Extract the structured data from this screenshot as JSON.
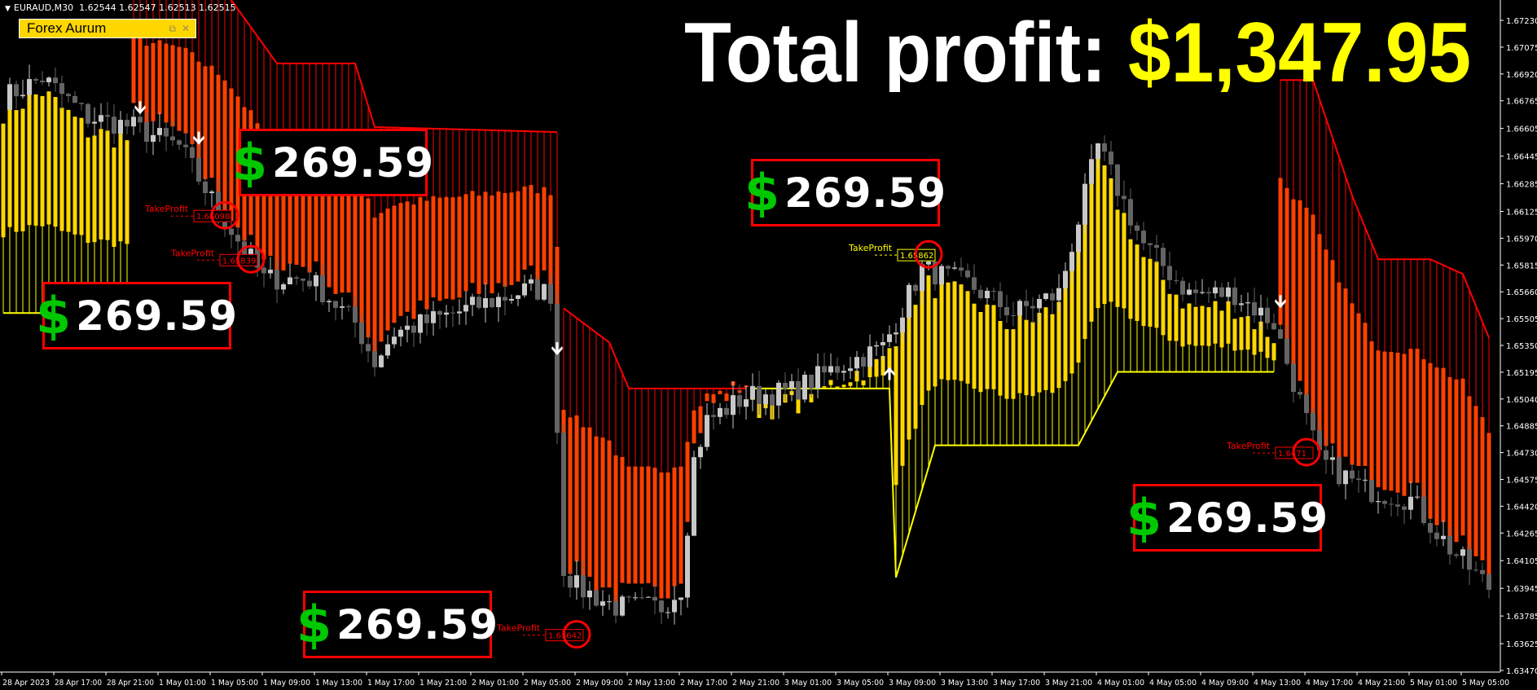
{
  "header": {
    "symbol": "EURAUD,M30",
    "quote": "1.62544 1.62547 1.62513 1.62515"
  },
  "expert": {
    "name": "Forex Aurum",
    "restore_icon": "restore-icon",
    "close_icon": "close-icon"
  },
  "title": {
    "label": "Total profit:",
    "amount": "$1,347.95",
    "label_color": "#ffffff",
    "amount_color": "#ffff00"
  },
  "profit_boxes": [
    {
      "currency": "$",
      "amount": "269.59"
    },
    {
      "currency": "$",
      "amount": "269.59"
    },
    {
      "currency": "$",
      "amount": "269.59"
    },
    {
      "currency": "$",
      "amount": "269.59"
    },
    {
      "currency": "$",
      "amount": "269.59"
    }
  ],
  "chart_data": {
    "type": "candlestick",
    "timeframe": "M30",
    "ylim": [
      1.6347,
      1.6723
    ],
    "y_ticks": [
      "1.67230",
      "1.67075",
      "1.66920",
      "1.66765",
      "1.66605",
      "1.66445",
      "1.66285",
      "1.66125",
      "1.65970",
      "1.65815",
      "1.65660",
      "1.65505",
      "1.65350",
      "1.65195",
      "1.65040",
      "1.64885",
      "1.64730",
      "1.64575",
      "1.64420",
      "1.64265",
      "1.64105",
      "1.63945",
      "1.63785",
      "1.63625",
      "1.63470"
    ],
    "x_ticks": [
      "28 Apr 2023",
      "28 Apr 17:00",
      "28 Apr 21:00",
      "1 May 01:00",
      "1 May 05:00",
      "1 May 09:00",
      "1 May 13:00",
      "1 May 17:00",
      "1 May 21:00",
      "2 May 01:00",
      "2 May 05:00",
      "2 May 09:00",
      "2 May 13:00",
      "2 May 17:00",
      "2 May 21:00",
      "3 May 01:00",
      "3 May 05:00",
      "3 May 09:00",
      "3 May 13:00",
      "3 May 17:00",
      "3 May 21:00",
      "4 May 01:00",
      "4 May 05:00",
      "4 May 09:00",
      "4 May 13:00",
      "4 May 17:00",
      "4 May 21:00",
      "5 May 01:00",
      "5 May 05:00"
    ],
    "bars_per_tick": 8,
    "close_path": [
      [
        0,
        1.66783
      ],
      [
        6,
        1.66896
      ],
      [
        13,
        1.66669
      ],
      [
        20,
        1.66613
      ],
      [
        27,
        1.665
      ],
      [
        33,
        1.66131
      ],
      [
        40,
        1.65735
      ],
      [
        47,
        1.65735
      ],
      [
        54,
        1.6548
      ],
      [
        57,
        1.65254
      ],
      [
        60,
        1.65424
      ],
      [
        67,
        1.65509
      ],
      [
        74,
        1.65594
      ],
      [
        81,
        1.65679
      ],
      [
        84,
        1.6565
      ],
      [
        86,
        1.64065
      ],
      [
        88,
        1.63951
      ],
      [
        94,
        1.63838
      ],
      [
        101,
        1.63838
      ],
      [
        104,
        1.63951
      ],
      [
        106,
        1.64687
      ],
      [
        108,
        1.64914
      ],
      [
        114,
        1.65056
      ],
      [
        121,
        1.65084
      ],
      [
        128,
        1.65225
      ],
      [
        135,
        1.65339
      ],
      [
        141,
        1.65792
      ],
      [
        148,
        1.65707
      ],
      [
        155,
        1.65537
      ],
      [
        162,
        1.6565
      ],
      [
        168,
        1.665
      ],
      [
        175,
        1.65933
      ],
      [
        182,
        1.6565
      ],
      [
        189,
        1.6565
      ],
      [
        195,
        1.6548
      ],
      [
        202,
        1.64687
      ],
      [
        209,
        1.64517
      ],
      [
        216,
        1.6446
      ],
      [
        222,
        1.64177
      ],
      [
        228,
        1.63951
      ]
    ],
    "bull_color": "#c8c8c8",
    "bear_color": "#646464",
    "trend_segments": [
      {
        "dir": "buy",
        "line": [
          [
            0,
            1.65537
          ],
          [
            19,
            1.65537
          ]
        ]
      },
      {
        "dir": "sell",
        "line": [
          [
            20,
            1.674
          ],
          [
            34,
            1.674
          ],
          [
            42,
            1.66981
          ],
          [
            54,
            1.66981
          ],
          [
            57,
            1.66613
          ],
          [
            85,
            1.66584
          ]
        ]
      },
      {
        "dir": "sell",
        "line": [
          [
            86,
            1.65565
          ],
          [
            93,
            1.65367
          ],
          [
            96,
            1.65101
          ],
          [
            114,
            1.65101
          ]
        ]
      },
      {
        "dir": "buy",
        "line": [
          [
            115,
            1.65101
          ],
          [
            136,
            1.65101
          ],
          [
            137,
            1.64008
          ],
          [
            143,
            1.64772
          ],
          [
            165,
            1.64772
          ],
          [
            171,
            1.65197
          ],
          [
            195,
            1.65197
          ]
        ]
      },
      {
        "dir": "sell",
        "line": [
          [
            196,
            1.66885
          ],
          [
            201,
            1.66885
          ],
          [
            207,
            1.66216
          ],
          [
            211,
            1.65848
          ],
          [
            219,
            1.65848
          ],
          [
            224,
            1.65763
          ],
          [
            228,
            1.65395
          ]
        ]
      }
    ],
    "colors": {
      "sell_line": "#ff0000",
      "sell_bar": "#ff4000",
      "buy_line": "#ffff00",
      "buy_bar": "#ffd700"
    },
    "signals": [
      {
        "dir": "down",
        "bar": 21,
        "price": 1.66715
      },
      {
        "dir": "down",
        "bar": 30,
        "price": 1.66539
      },
      {
        "dir": "down",
        "bar": 85,
        "price": 1.65322
      },
      {
        "dir": "up",
        "bar": 136,
        "price": 1.65197
      },
      {
        "dir": "down",
        "bar": 196,
        "price": 1.65594
      }
    ],
    "take_profits": [
      {
        "bar": 34,
        "price": 1.66103,
        "text": "TakeProfit",
        "value": "1.66098",
        "color": "#ff0000"
      },
      {
        "bar": 38,
        "price": 1.65848,
        "text": "TakeProfit",
        "value": "1.65839",
        "color": "#ff0000"
      },
      {
        "bar": 88,
        "price": 1.63679,
        "text": "TakeProfit",
        "value": "1.63642",
        "color": "#ff0000"
      },
      {
        "bar": 142,
        "price": 1.65877,
        "text": "TakeProfit",
        "value": "1.65862",
        "color": "#ffff00"
      },
      {
        "bar": 200,
        "price": 1.64733,
        "text": "TakeProfit",
        "value": "1.6471",
        "color": "#ff0000"
      }
    ]
  }
}
